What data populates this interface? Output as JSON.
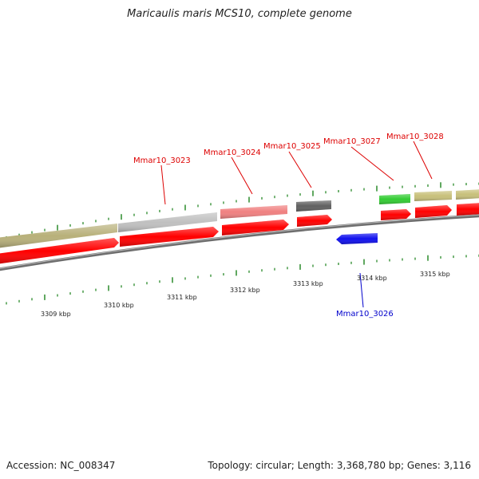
{
  "title": "Maricaulis maris MCS10, complete genome",
  "footer": {
    "accession": "Accession: NC_008347",
    "summary": "Topology: circular; Length: 3,368,780 bp; Genes: 3,116"
  },
  "colors": {
    "cds": "#ff0000",
    "tick": "#2a8a2a",
    "backbone": "#808080",
    "label_forward": "#dd0000",
    "label_reverse": "#0000cc"
  },
  "kbp_labels": [
    "3309 kbp",
    "3310 kbp",
    "3311 kbp",
    "3312 kbp",
    "3313 kbp",
    "3314 kbp",
    "3315 kbp"
  ],
  "genes": [
    {
      "id": "Mmar10_3023",
      "strand": "forward",
      "color": "#c0c0c0"
    },
    {
      "id": "Mmar10_3024",
      "strand": "forward",
      "color": "#f08080"
    },
    {
      "id": "Mmar10_3025",
      "strand": "forward",
      "color": "#606060"
    },
    {
      "id": "Mmar10_3026",
      "strand": "reverse",
      "color": "#0000ff"
    },
    {
      "id": "Mmar10_3027",
      "strand": "forward",
      "color": "#33cc33"
    },
    {
      "id": "Mmar10_3028",
      "strand": "forward",
      "color": "#c8c07a"
    }
  ]
}
